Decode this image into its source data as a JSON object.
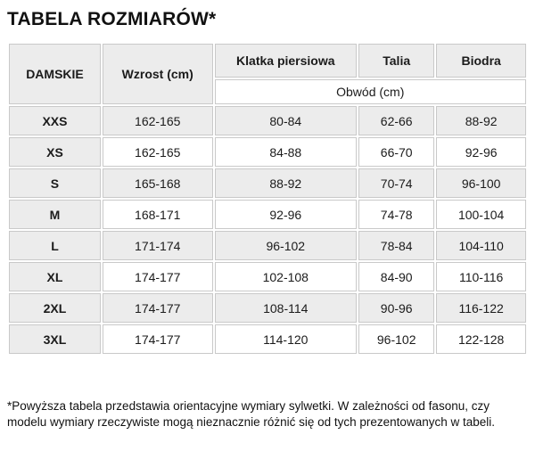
{
  "title": "TABELA ROZMIARÓW*",
  "table": {
    "corner_header": "DAMSKIE",
    "height_header": "Wzrost (cm)",
    "measure_headers": {
      "chest": "Klatka piersiowa",
      "waist": "Talia",
      "hips": "Biodra"
    },
    "subheader": "Obwód (cm)",
    "rows": [
      {
        "size": "XXS",
        "height": "162-165",
        "chest": "80-84",
        "waist": "62-66",
        "hips": "88-92"
      },
      {
        "size": "XS",
        "height": "162-165",
        "chest": "84-88",
        "waist": "66-70",
        "hips": "92-96"
      },
      {
        "size": "S",
        "height": "165-168",
        "chest": "88-92",
        "waist": "70-74",
        "hips": "96-100"
      },
      {
        "size": "M",
        "height": "168-171",
        "chest": "92-96",
        "waist": "74-78",
        "hips": "100-104"
      },
      {
        "size": "L",
        "height": "171-174",
        "chest": "96-102",
        "waist": "78-84",
        "hips": "104-110"
      },
      {
        "size": "XL",
        "height": "174-177",
        "chest": "102-108",
        "waist": "84-90",
        "hips": "110-116"
      },
      {
        "size": "2XL",
        "height": "174-177",
        "chest": "108-114",
        "waist": "90-96",
        "hips": "116-122"
      },
      {
        "size": "3XL",
        "height": "174-177",
        "chest": "114-120",
        "waist": "96-102",
        "hips": "122-128"
      }
    ]
  },
  "footnote": "*Powyższa tabela przedstawia orientacyjne wymiary sylwetki. W zależności od fasonu, czy modelu wymiary rzeczywiste mogą nieznacznie różnić się od tych prezentowanych w tabeli.",
  "colors": {
    "cell_grey": "#ececec",
    "border": "#c9c9c9",
    "text": "#1b1b1b",
    "background": "#ffffff"
  }
}
